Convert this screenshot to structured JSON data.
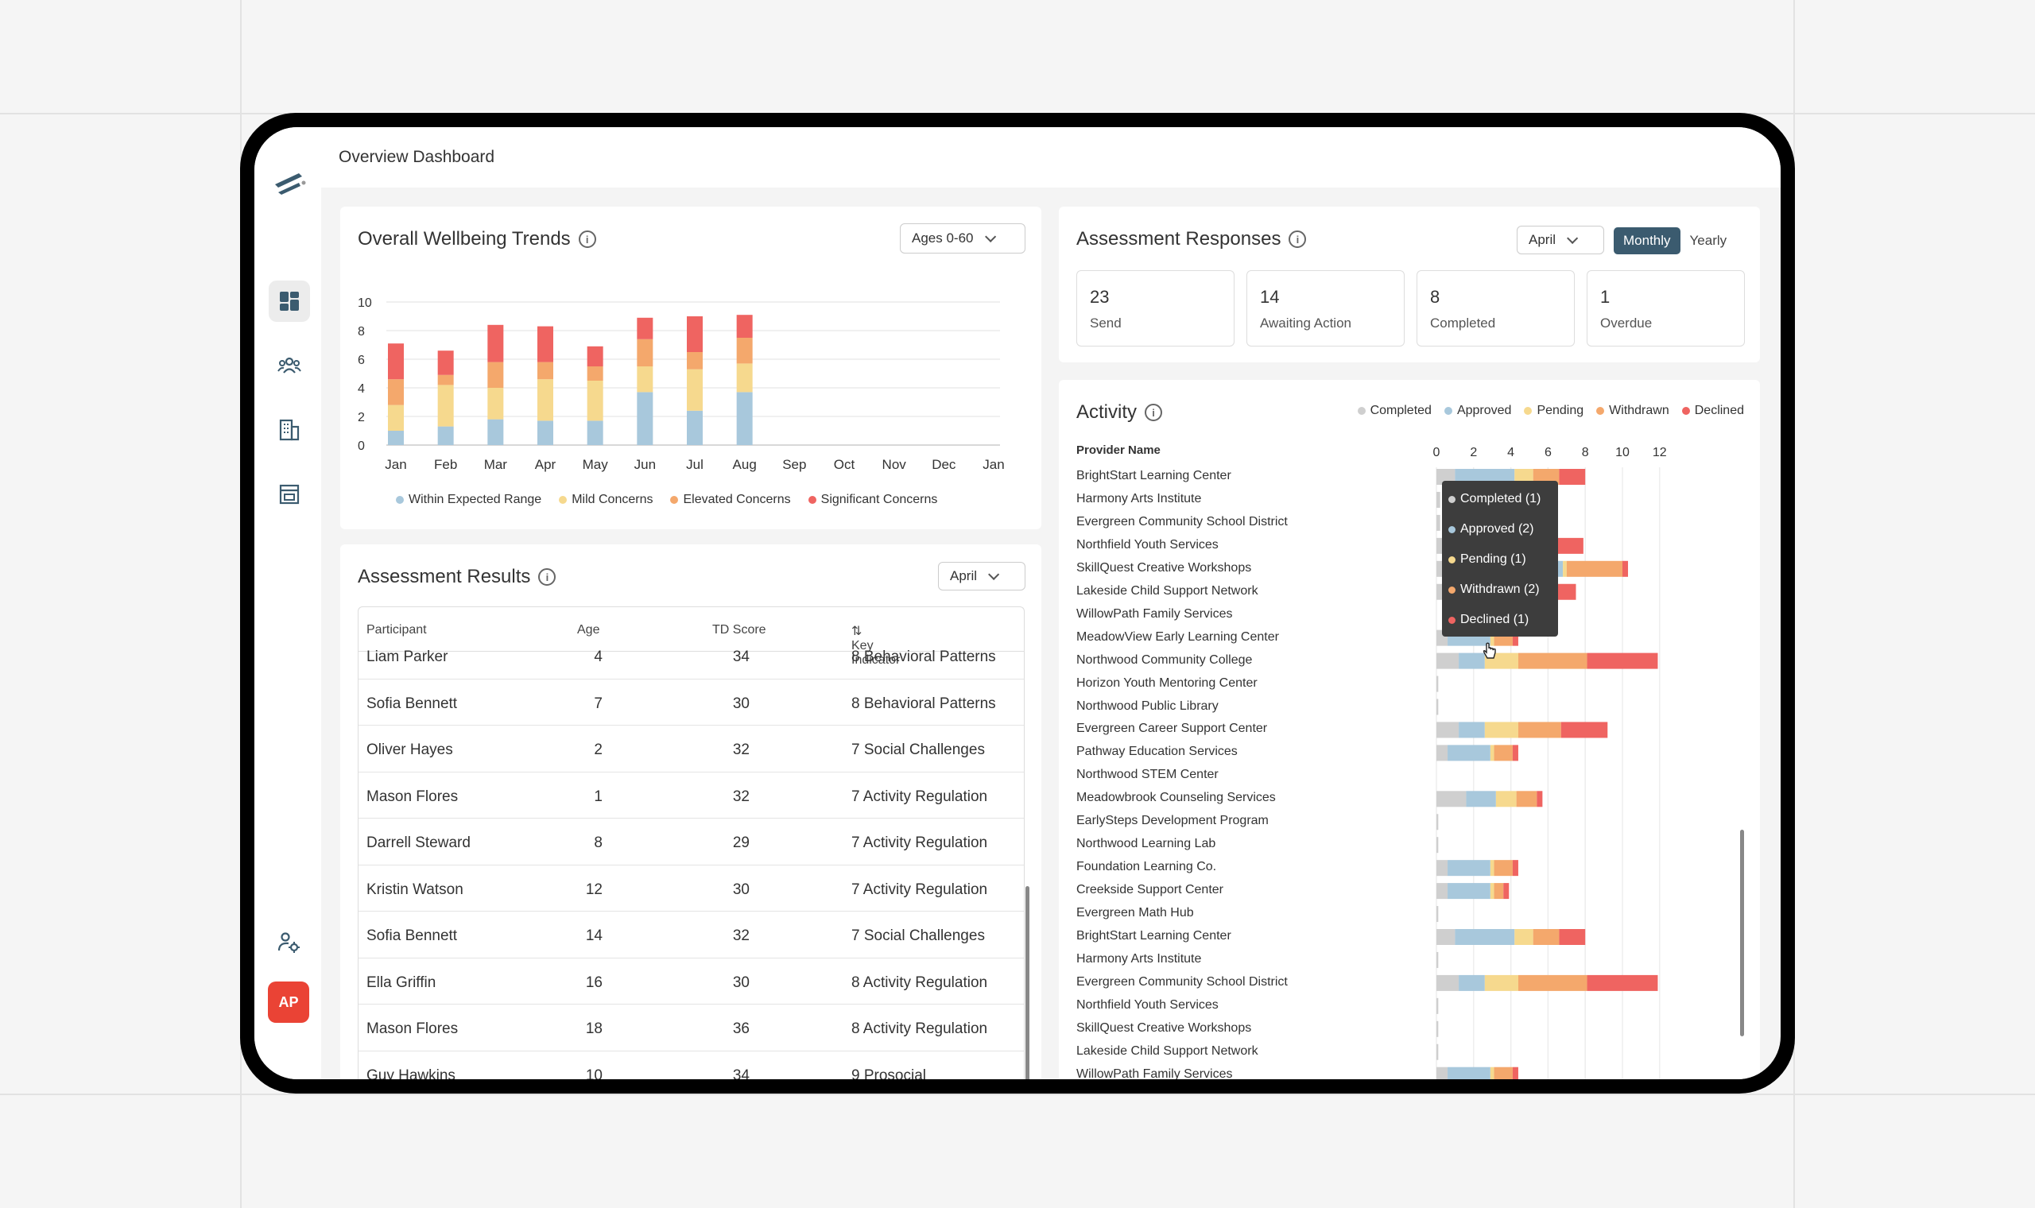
{
  "header": {
    "title": "Overview Dashboard"
  },
  "sidebar": {
    "nav": [
      {
        "icon": "dashboard-icon",
        "active": true
      },
      {
        "icon": "users-group-icon",
        "active": false
      },
      {
        "icon": "building-icon",
        "active": false
      },
      {
        "icon": "storefront-icon",
        "active": false
      }
    ],
    "settings_icon": "user-settings-icon",
    "avatar_initials": "AP"
  },
  "wellbeing": {
    "title": "Overall Wellbeing Trends",
    "filter": "Ages 0-60",
    "chart_data": {
      "type": "bar",
      "stacked": true,
      "categories": [
        "Jan",
        "Feb",
        "Mar",
        "Apr",
        "May",
        "Jun",
        "Jul",
        "Aug",
        "Sep",
        "Oct",
        "Nov",
        "Dec",
        "Jan"
      ],
      "series": [
        {
          "name": "Within Expected Range",
          "color": "#a8c8dc",
          "values": [
            1,
            1.3,
            1.8,
            1.7,
            1.7,
            3.7,
            2.4,
            3.7,
            0,
            0,
            0,
            0,
            0
          ]
        },
        {
          "name": "Mild Concerns",
          "color": "#f6d98e",
          "values": [
            1.8,
            2.9,
            2.2,
            2.9,
            2.8,
            1.8,
            2.9,
            2.0,
            0,
            0,
            0,
            0,
            0
          ]
        },
        {
          "name": "Elevated Concerns",
          "color": "#f4a86c",
          "values": [
            1.8,
            0.7,
            1.8,
            1.2,
            1.0,
            1.9,
            1.2,
            1.8,
            0,
            0,
            0,
            0,
            0
          ]
        },
        {
          "name": "Significant Concerns",
          "color": "#ef6461",
          "values": [
            2.5,
            1.7,
            2.6,
            2.5,
            1.4,
            1.5,
            2.5,
            1.6,
            0,
            0,
            0,
            0,
            0
          ]
        }
      ],
      "ylim": [
        0,
        10
      ],
      "yticks": [
        0,
        2,
        4,
        6,
        8,
        10
      ],
      "grid": true,
      "legend": "bottom"
    }
  },
  "responses": {
    "title": "Assessment Responses",
    "month": "April",
    "toggle": [
      "Monthly",
      "Yearly"
    ],
    "stats": [
      {
        "value": "23",
        "label": "Send"
      },
      {
        "value": "14",
        "label": "Awaiting Action"
      },
      {
        "value": "8",
        "label": "Completed"
      },
      {
        "value": "1",
        "label": "Overdue"
      }
    ]
  },
  "results": {
    "title": "Assessment Results",
    "month": "April",
    "columns": [
      "Participant",
      "Age",
      "TD Score",
      "Key Indicator"
    ],
    "rows": [
      [
        "Liam Parker",
        "4",
        "34",
        "8 Behavioral Patterns"
      ],
      [
        "Sofia Bennett",
        "7",
        "30",
        "8 Behavioral Patterns"
      ],
      [
        "Oliver Hayes",
        "2",
        "32",
        "7 Social Challenges"
      ],
      [
        "Mason Flores",
        "1",
        "32",
        "7 Activity Regulation"
      ],
      [
        "Darrell Steward",
        "8",
        "29",
        "7 Activity Regulation"
      ],
      [
        "Kristin Watson",
        "12",
        "30",
        "7 Activity Regulation"
      ],
      [
        "Sofia Bennett",
        "14",
        "32",
        "7 Social Challenges"
      ],
      [
        "Ella Griffin",
        "16",
        "30",
        "8 Activity Regulation"
      ],
      [
        "Mason Flores",
        "18",
        "36",
        "8 Activity Regulation"
      ],
      [
        "Guy Hawkins",
        "10",
        "34",
        "9 Prosocial"
      ]
    ]
  },
  "activity": {
    "title": "Activity",
    "column_header": "Provider Name",
    "legend": [
      {
        "name": "Completed",
        "color": "#cfcfcf"
      },
      {
        "name": "Approved",
        "color": "#a8c8dc"
      },
      {
        "name": "Pending",
        "color": "#f6d98e"
      },
      {
        "name": "Withdrawn",
        "color": "#f4a86c"
      },
      {
        "name": "Declined",
        "color": "#ef6461"
      }
    ],
    "tooltip": [
      "Completed (1)",
      "Approved (2)",
      "Pending (1)",
      "Withdrawn (2)",
      "Declined (1)"
    ],
    "chart_data": {
      "type": "bar",
      "orientation": "horizontal",
      "stacked": true,
      "xticks": [
        0,
        2,
        4,
        6,
        8,
        10,
        12
      ],
      "xlim": [
        0,
        12.5
      ],
      "series_names": [
        "Completed",
        "Approved",
        "Pending",
        "Withdrawn",
        "Declined"
      ],
      "categories": [
        "BrightStart Learning Center",
        "Harmony Arts Institute",
        "Evergreen Community School District",
        "Northfield Youth Services",
        "SkillQuest Creative Workshops",
        "Lakeside Child Support Network",
        "WillowPath Family Services",
        "MeadowView Early Learning Center",
        "Northwood Community College",
        "Horizon Youth Mentoring Center",
        "Northwood Public Library",
        "Evergreen Career Support Center",
        "Pathway Education Services",
        "Northwood STEM Center",
        "Meadowbrook Counseling Services",
        "EarlySteps Development Program",
        "Northwood Learning Lab",
        "Foundation Learning Co.",
        "Creekside Support Center",
        "Evergreen Math Hub",
        "BrightStart Learning Center",
        "Harmony Arts Institute",
        "Evergreen Community School District",
        "Northfield Youth Services",
        "SkillQuest Creative Workshops",
        "Lakeside Child Support Network",
        "WillowPath Family Services"
      ],
      "values": [
        [
          1,
          3.2,
          1,
          1.4,
          1.4
        ],
        [
          0.2,
          0,
          0,
          0,
          0
        ],
        [
          0.2,
          0,
          0,
          0,
          0
        ],
        [
          0.5,
          0,
          0,
          3.6,
          3.8
        ],
        [
          0.5,
          6.3,
          0.2,
          3,
          0.3
        ],
        [
          0.5,
          0,
          0,
          5.6,
          1.4
        ],
        [
          0,
          0,
          0,
          0,
          0
        ],
        [
          0.6,
          2.3,
          0.2,
          1,
          0.3
        ],
        [
          1.2,
          1.4,
          1.8,
          3.7,
          3.8
        ],
        [
          0.1,
          0,
          0,
          0,
          0
        ],
        [
          0.1,
          0,
          0,
          0,
          0
        ],
        [
          1.2,
          1.4,
          1.8,
          2.3,
          2.5
        ],
        [
          0.6,
          2.3,
          0.2,
          1,
          0.3
        ],
        [
          0,
          0,
          0,
          0,
          0
        ],
        [
          1.6,
          1.6,
          1.1,
          1.1,
          0.3
        ],
        [
          0.1,
          0,
          0,
          0,
          0
        ],
        [
          0.1,
          0,
          0,
          0,
          0
        ],
        [
          0.6,
          2.3,
          0.2,
          1,
          0.3
        ],
        [
          0.6,
          2.3,
          0.2,
          0.5,
          0.3
        ],
        [
          0.1,
          0,
          0,
          0,
          0
        ],
        [
          1,
          3.2,
          1,
          1.4,
          1.4
        ],
        [
          0.1,
          0,
          0,
          0,
          0
        ],
        [
          1.2,
          1.4,
          1.8,
          3.7,
          3.8
        ],
        [
          0.1,
          0,
          0,
          0,
          0
        ],
        [
          0.1,
          0,
          0,
          0,
          0
        ],
        [
          0.1,
          0,
          0,
          0,
          0
        ],
        [
          0.6,
          2.3,
          0.2,
          1,
          0.3
        ]
      ]
    }
  }
}
